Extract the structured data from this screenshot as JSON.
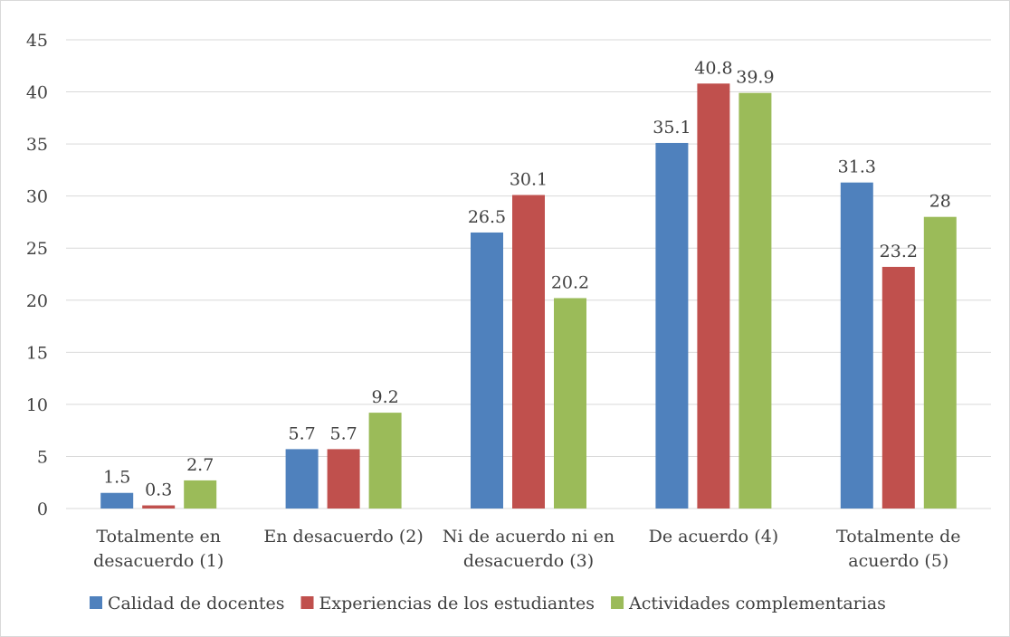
{
  "chart_data": {
    "type": "bar",
    "title": "",
    "xlabel": "",
    "ylabel": "",
    "ylim": [
      0,
      45
    ],
    "ytick_step": 5,
    "grid": true,
    "legend_position": "bottom",
    "categories": [
      [
        "Totalmente en",
        "desacuerdo (1)"
      ],
      [
        "En desacuerdo (2)"
      ],
      [
        "Ni de acuerdo ni en",
        "desacuerdo (3)"
      ],
      [
        "De acuerdo (4)"
      ],
      [
        "Totalmente de",
        "acuerdo (5)"
      ]
    ],
    "series": [
      {
        "name": "Calidad de docentes",
        "color": "#4f81bd",
        "values": [
          1.5,
          5.7,
          26.5,
          35.1,
          31.3
        ]
      },
      {
        "name": "Experiencias de los estudiantes",
        "color": "#c0504d",
        "values": [
          0.3,
          5.7,
          30.1,
          40.8,
          23.2
        ]
      },
      {
        "name": "Actividades complementarias",
        "color": "#9bbb59",
        "values": [
          2.7,
          9.2,
          20.2,
          39.9,
          28
        ]
      }
    ]
  }
}
